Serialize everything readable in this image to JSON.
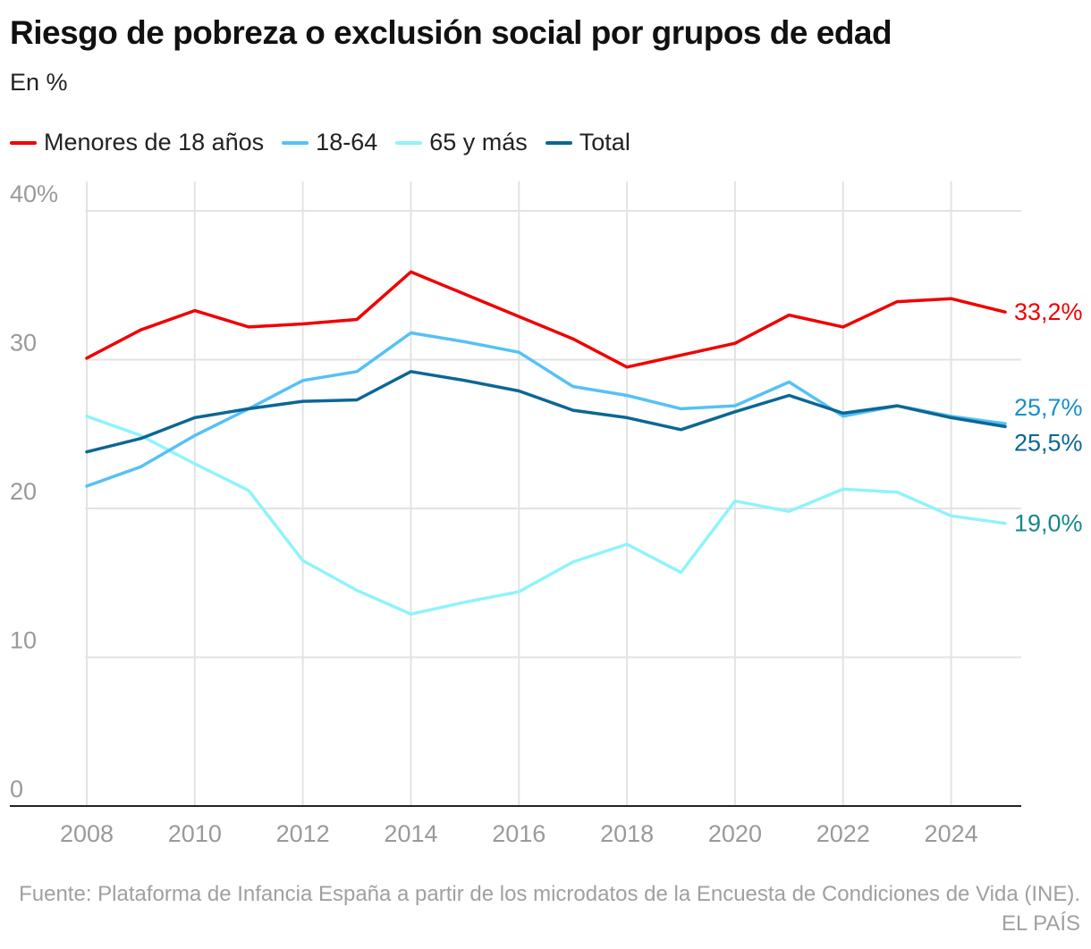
{
  "chart_data": {
    "type": "line",
    "title": "Riesgo de pobreza o exclusión social por grupos de edad",
    "subtitle": "En %",
    "source": "Fuente: Plataforma de Infancia España a partir de los microdatos de la Encuesta de Condiciones de Vida (INE). EL PAÍS",
    "x": [
      2008,
      2009,
      2010,
      2011,
      2012,
      2013,
      2014,
      2015,
      2016,
      2017,
      2018,
      2019,
      2020,
      2021,
      2022,
      2023,
      2024,
      2025
    ],
    "xticks": [
      "2008",
      "2010",
      "2012",
      "2014",
      "2016",
      "2018",
      "2020",
      "2022",
      "2024"
    ],
    "yticks": [
      "0",
      "10",
      "20",
      "30",
      "40%"
    ],
    "ylim": [
      0,
      40
    ],
    "grid": true,
    "legend_position": "top-left",
    "series": [
      {
        "name": "Menores de 18 años",
        "color": "#f00000",
        "end_label": "33,2%",
        "label_color": "#f00000",
        "values": [
          30.1,
          32.0,
          33.3,
          32.2,
          32.4,
          32.7,
          35.9,
          34.4,
          32.9,
          31.4,
          29.5,
          30.3,
          31.1,
          33.0,
          32.2,
          33.9,
          34.1,
          33.2
        ]
      },
      {
        "name": "18-64",
        "color": "#55c1f7",
        "end_label": "25,7%",
        "label_color": "#1a8fc8",
        "values": [
          21.5,
          22.8,
          24.9,
          26.7,
          28.6,
          29.2,
          31.8,
          31.2,
          30.5,
          28.2,
          27.6,
          26.7,
          26.9,
          28.5,
          26.2,
          26.9,
          26.2,
          25.7
        ]
      },
      {
        "name": "65 y más",
        "color": "#8ff3fb",
        "end_label": "19,0%",
        "label_color": "#16878c",
        "values": [
          26.2,
          24.9,
          23.0,
          21.2,
          16.5,
          14.5,
          12.9,
          13.7,
          14.4,
          16.4,
          17.6,
          15.7,
          20.5,
          19.8,
          21.3,
          21.1,
          19.5,
          19.0
        ]
      },
      {
        "name": "Total",
        "color": "#0b6795",
        "end_label": "25,5%",
        "label_color": "#0b6795",
        "values": [
          23.8,
          24.7,
          26.1,
          26.7,
          27.2,
          27.3,
          29.2,
          28.6,
          27.9,
          26.6,
          26.1,
          25.3,
          26.5,
          27.6,
          26.4,
          26.9,
          26.1,
          25.5
        ]
      }
    ]
  }
}
